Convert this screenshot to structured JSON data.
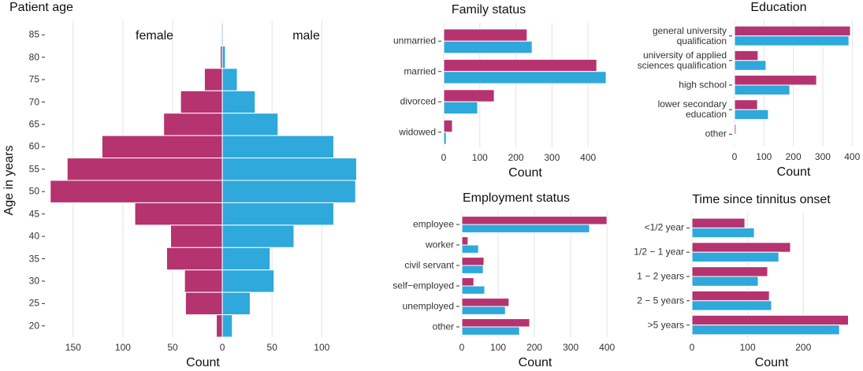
{
  "chart_data": [
    {
      "type": "bar",
      "orientation": "horizontal",
      "barmode": "overlay",
      "title": "Patient age",
      "xlabel": "Count",
      "ylabel": "Age in years",
      "categories": [
        "85",
        "80",
        "75",
        "70",
        "65",
        "60",
        "55",
        "50",
        "45",
        "40",
        "35",
        "30",
        "25",
        "20"
      ],
      "series": [
        {
          "name": "female",
          "color": "#b5336f",
          "values": [
            -1,
            -2,
            -18,
            -42,
            -59,
            -121,
            -156,
            -173,
            -88,
            -52,
            -56,
            -38,
            -37,
            -6
          ]
        },
        {
          "name": "male",
          "color": "#2fa8dc",
          "values": [
            1,
            3,
            15,
            33,
            56,
            112,
            135,
            134,
            112,
            72,
            48,
            52,
            28,
            10
          ]
        }
      ],
      "xlim": [
        -176,
        137
      ],
      "xticks": [
        {
          "value": -150,
          "label": "150"
        },
        {
          "value": -100,
          "label": "100"
        },
        {
          "value": -50,
          "label": "50"
        },
        0,
        50,
        100
      ],
      "grid": true
    },
    {
      "type": "bar",
      "orientation": "horizontal",
      "barmode": "group",
      "title": "Family status",
      "xlabel": "Count",
      "categories": [
        "unmarried",
        "married",
        "divorced",
        "widowed"
      ],
      "series": [
        {
          "color": "#b5336f",
          "values": [
            231,
            424,
            140,
            24
          ]
        },
        {
          "color": "#2fa8dc",
          "values": [
            245,
            450,
            94,
            7
          ]
        }
      ],
      "xlim": [
        0,
        452
      ],
      "xticks": [
        0,
        100,
        200,
        300,
        400
      ],
      "grid": true
    },
    {
      "type": "bar",
      "orientation": "horizontal",
      "barmode": "group",
      "title": "Education",
      "xlabel": "Count",
      "categories": [
        "general university\nqualification",
        "university of applied\nsciences qualification",
        "high school",
        "lower secondary\neducation",
        "other"
      ],
      "series": [
        {
          "color": "#b5336f",
          "values": [
            394,
            80,
            279,
            78,
            5
          ]
        },
        {
          "color": "#2fa8dc",
          "values": [
            389,
            107,
            188,
            115,
            1
          ]
        }
      ],
      "xlim": [
        0,
        402
      ],
      "xticks": [
        0,
        100,
        200,
        300,
        400
      ],
      "grid": true
    },
    {
      "type": "bar",
      "orientation": "horizontal",
      "barmode": "group",
      "title": "Employment status",
      "xlabel": "Count",
      "categories": [
        "employee",
        "worker",
        "civil servant",
        "self−employed",
        "unemployed",
        "other"
      ],
      "series": [
        {
          "color": "#b5336f",
          "values": [
            400,
            17,
            61,
            33,
            130,
            187
          ]
        },
        {
          "color": "#2fa8dc",
          "values": [
            352,
            46,
            59,
            63,
            120,
            159
          ]
        }
      ],
      "xlim": [
        0,
        404
      ],
      "xticks": [
        0,
        100,
        200,
        300,
        400
      ],
      "grid": true
    },
    {
      "type": "bar",
      "orientation": "horizontal",
      "barmode": "group",
      "title": "Time since tinnitus onset",
      "xlabel": "Count",
      "categories": [
        "<1/2 year",
        "1/2 − 1 year",
        "1 − 2 years",
        "2 − 5 years",
        ">5 years"
      ],
      "series": [
        {
          "color": "#b5336f",
          "values": [
            95,
            177,
            136,
            139,
            281
          ]
        },
        {
          "color": "#2fa8dc",
          "values": [
            112,
            156,
            119,
            143,
            265
          ]
        }
      ],
      "xlim": [
        0,
        286
      ],
      "xticks": [
        0,
        100,
        200
      ],
      "grid": true
    }
  ]
}
